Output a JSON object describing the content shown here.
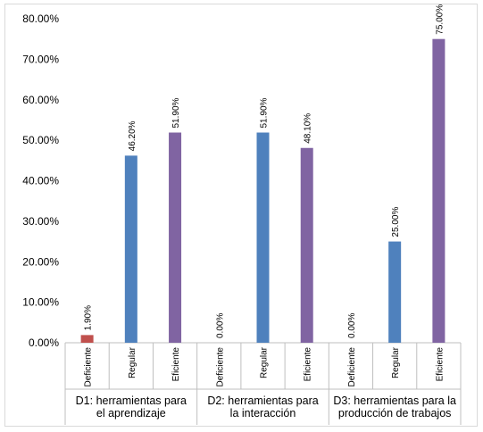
{
  "chart_data": {
    "type": "bar",
    "groups": [
      {
        "label_lines": [
          "D1: herramientas para",
          "el aprendizaje"
        ]
      },
      {
        "label_lines": [
          "D2: herramientas para",
          "la interacción"
        ]
      },
      {
        "label_lines": [
          "D3: herramientas para la",
          "producción de trabajos"
        ]
      }
    ],
    "categories": [
      "Deficiente",
      "Regular",
      "Eficiente"
    ],
    "values": [
      [
        1.9,
        46.2,
        51.9
      ],
      [
        0.0,
        51.9,
        48.1
      ],
      [
        0.0,
        25.0,
        75.0
      ]
    ],
    "data_labels": [
      [
        "1.90%",
        "46.20%",
        "51.90%"
      ],
      [
        "0.00%",
        "51.90%",
        "48.10%"
      ],
      [
        "0.00%",
        "25.00%",
        "75.00%"
      ]
    ],
    "category_colors": [
      "#c0504d",
      "#4f81bd",
      "#8064a2"
    ],
    "yticks": [
      "0.00%",
      "10.00%",
      "20.00%",
      "30.00%",
      "40.00%",
      "50.00%",
      "60.00%",
      "70.00%",
      "80.00%"
    ],
    "ylim": [
      0,
      80
    ],
    "grid": false,
    "legend": "none"
  }
}
